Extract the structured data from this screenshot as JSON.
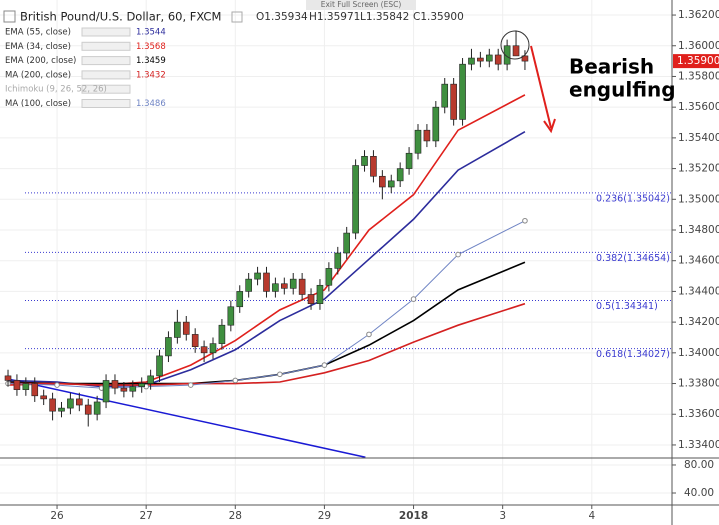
{
  "header": {
    "symbol": "British Pound/U.S. Dollar, 60, FXCM",
    "ohlc": [
      "O1.35934",
      "H1.35971",
      "L1.35842",
      "C1.35900"
    ],
    "exit_fullscreen": "Exit Full Screen (ESC)"
  },
  "chart_data": {
    "type": "candlestick",
    "x": [
      -0.55,
      -0.45,
      -0.35,
      -0.25,
      -0.15,
      -0.05,
      0.05,
      0.15,
      0.25,
      0.35,
      0.45,
      0.55,
      0.65,
      0.75,
      0.85,
      0.95,
      1.05,
      1.15,
      1.25,
      1.35,
      1.45,
      1.55,
      1.65,
      1.75,
      1.85,
      1.95,
      2.05,
      2.15,
      2.25,
      2.35,
      2.45,
      2.55,
      2.65,
      2.75,
      2.85,
      2.95,
      3.05,
      3.15,
      3.25,
      3.35,
      3.45,
      3.55,
      3.65,
      3.75,
      3.85,
      3.95,
      4.05,
      4.15,
      4.25,
      4.35,
      4.45,
      4.55,
      4.65,
      4.75,
      4.85,
      4.95,
      5.05,
      5.15,
      5.25
    ],
    "open": [
      1.3385,
      1.3382,
      1.3376,
      1.338,
      1.3372,
      1.337,
      1.3362,
      1.3364,
      1.337,
      1.3366,
      1.336,
      1.3368,
      1.3382,
      1.3377,
      1.3375,
      1.3378,
      1.338,
      1.3385,
      1.3398,
      1.341,
      1.342,
      1.3412,
      1.3404,
      1.34,
      1.3406,
      1.3418,
      1.343,
      1.344,
      1.3448,
      1.3452,
      1.344,
      1.3445,
      1.3442,
      1.3448,
      1.3438,
      1.3432,
      1.3444,
      1.3455,
      1.3465,
      1.3478,
      1.3522,
      1.3528,
      1.3515,
      1.3508,
      1.3512,
      1.352,
      1.353,
      1.3545,
      1.3538,
      1.356,
      1.3575,
      1.3552,
      1.3588,
      1.3592,
      1.359,
      1.3594,
      1.3588,
      1.36,
      1.35934
    ],
    "high": [
      1.3389,
      1.3386,
      1.3384,
      1.3384,
      1.3376,
      1.3374,
      1.3368,
      1.3374,
      1.3374,
      1.337,
      1.3372,
      1.3386,
      1.3386,
      1.3381,
      1.3382,
      1.3384,
      1.3389,
      1.3402,
      1.3414,
      1.3428,
      1.3424,
      1.3416,
      1.3408,
      1.341,
      1.3422,
      1.3434,
      1.3444,
      1.3452,
      1.3456,
      1.3456,
      1.3449,
      1.3449,
      1.3452,
      1.3452,
      1.3442,
      1.3448,
      1.3459,
      1.3469,
      1.3482,
      1.3526,
      1.3532,
      1.3532,
      1.3519,
      1.3516,
      1.3524,
      1.3534,
      1.3549,
      1.3549,
      1.3564,
      1.3579,
      1.3579,
      1.3592,
      1.3598,
      1.3596,
      1.3598,
      1.3598,
      1.3604,
      1.361,
      1.35971
    ],
    "low": [
      1.3378,
      1.3372,
      1.3372,
      1.3368,
      1.3366,
      1.3356,
      1.3358,
      1.336,
      1.3362,
      1.3352,
      1.3356,
      1.3364,
      1.3373,
      1.3371,
      1.3371,
      1.3374,
      1.3376,
      1.3381,
      1.3394,
      1.3406,
      1.3408,
      1.34,
      1.3394,
      1.3396,
      1.3402,
      1.3414,
      1.3426,
      1.3436,
      1.3444,
      1.3436,
      1.3436,
      1.3438,
      1.3438,
      1.3434,
      1.3428,
      1.3428,
      1.344,
      1.3451,
      1.3461,
      1.3474,
      1.3518,
      1.3511,
      1.35,
      1.3504,
      1.3508,
      1.3516,
      1.3526,
      1.3534,
      1.3534,
      1.3556,
      1.3548,
      1.3548,
      1.3584,
      1.3586,
      1.3586,
      1.3584,
      1.3584,
      1.3596,
      1.35842
    ],
    "close": [
      1.3382,
      1.3376,
      1.338,
      1.3372,
      1.337,
      1.3362,
      1.3364,
      1.337,
      1.3366,
      1.336,
      1.3368,
      1.3382,
      1.3377,
      1.3375,
      1.3378,
      1.338,
      1.3385,
      1.3398,
      1.341,
      1.342,
      1.3412,
      1.3404,
      1.34,
      1.3406,
      1.3418,
      1.343,
      1.344,
      1.3448,
      1.3452,
      1.344,
      1.3445,
      1.3442,
      1.3448,
      1.3438,
      1.3432,
      1.3444,
      1.3455,
      1.3465,
      1.3478,
      1.3522,
      1.3528,
      1.3515,
      1.3508,
      1.3512,
      1.352,
      1.353,
      1.3545,
      1.3538,
      1.356,
      1.3575,
      1.3552,
      1.3588,
      1.3592,
      1.359,
      1.3594,
      1.3588,
      1.36,
      1.35934,
      1.359
    ],
    "up_color": "#3f8f3f",
    "down_color": "#b83a2e",
    "xlim": [
      -0.64,
      6.9
    ],
    "xticks": [
      {
        "value": 0,
        "label": "26"
      },
      {
        "value": 1,
        "label": "27"
      },
      {
        "value": 2,
        "label": "28"
      },
      {
        "value": 3,
        "label": "29"
      },
      {
        "value": 4,
        "label": "2018"
      },
      {
        "value": 5,
        "label": "3"
      },
      {
        "value": 6,
        "label": "4"
      }
    ],
    "ylim": [
      1.33315,
      1.36298
    ],
    "yticks": [
      {
        "value": 1.334,
        "label": "1.33400"
      },
      {
        "value": 1.336,
        "label": "1.33600"
      },
      {
        "value": 1.338,
        "label": "1.33800"
      },
      {
        "value": 1.34,
        "label": "1.34000"
      },
      {
        "value": 1.342,
        "label": "1.34200"
      },
      {
        "value": 1.344,
        "label": "1.34400"
      },
      {
        "value": 1.346,
        "label": "1.34600"
      },
      {
        "value": 1.348,
        "label": "1.34800"
      },
      {
        "value": 1.35,
        "label": "1.35000"
      },
      {
        "value": 1.352,
        "label": "1.35200"
      },
      {
        "value": 1.354,
        "label": "1.35400"
      },
      {
        "value": 1.356,
        "label": "1.35600"
      },
      {
        "value": 1.358,
        "label": "1.35800"
      },
      {
        "value": 1.36,
        "label": "1.36000"
      },
      {
        "value": 1.362,
        "label": "1.36200"
      }
    ],
    "grid": true,
    "last_price": {
      "value": 1.359,
      "label": "1.35900",
      "color": "#e0201c"
    },
    "indicators": {
      "x": [
        -0.55,
        0,
        0.5,
        1,
        1.5,
        2,
        2.5,
        3,
        3.5,
        4,
        4.5,
        5.25
      ],
      "series": [
        {
          "name": "EMA (55, close)",
          "legend_value": 1.3544,
          "color": "#2c2c9c",
          "values": [
            1.3382,
            1.3381,
            1.3378,
            1.3379,
            1.3389,
            1.3402,
            1.3421,
            1.3435,
            1.3461,
            1.3487,
            1.3519,
            1.3544
          ]
        },
        {
          "name": "EMA (34, close)",
          "legend_value": 1.3568,
          "color": "#e0201c",
          "values": [
            1.3379,
            1.338,
            1.3379,
            1.3381,
            1.3392,
            1.3408,
            1.3428,
            1.3441,
            1.348,
            1.3503,
            1.3545,
            1.3568
          ]
        },
        {
          "name": "EMA (200, close)",
          "legend_value": 1.3459,
          "color": "#000000",
          "values": [
            1.3381,
            1.338,
            1.338,
            1.338,
            1.338,
            1.3382,
            1.3386,
            1.3392,
            1.3405,
            1.3421,
            1.3441,
            1.3459
          ]
        },
        {
          "name": "MA (200, close)",
          "legend_value": 1.3432,
          "color": "#d42020",
          "values": [
            1.338,
            1.338,
            1.3379,
            1.3379,
            1.338,
            1.338,
            1.3381,
            1.3387,
            1.3395,
            1.3407,
            1.3418,
            1.3432
          ]
        },
        {
          "name": "MA (100, close)",
          "legend_value": 1.3486,
          "color": "#6f84c4",
          "markers": true,
          "values": [
            1.338,
            1.3379,
            1.3377,
            1.3378,
            1.3379,
            1.3382,
            1.3386,
            1.3392,
            1.3412,
            1.3435,
            1.3464,
            1.3486
          ]
        }
      ]
    },
    "ichimoku_label": "Ichimoku (9, 26, 52, 26)",
    "trendline": {
      "x": [
        -0.55,
        3.46
      ],
      "values": [
        1.3383,
        1.3332
      ],
      "color": "#1a1ad4"
    },
    "fibonacci": {
      "values": [
        1.35042,
        1.34654,
        1.34341,
        1.34027
      ],
      "value_labels": [
        "0.236(1.35042)",
        "0.382(1.34654)",
        "0.5(1.34341)",
        "0.618(1.34027)"
      ],
      "color": "#3a3ad0"
    },
    "annotation": [
      "Bearish",
      "engulfing"
    ],
    "lower_pane": {
      "ylim": [
        22.9,
        87.1
      ],
      "yticks": [
        {
          "value": 80,
          "label": "80.00"
        },
        {
          "value": 40,
          "label": "40.00"
        }
      ]
    }
  }
}
